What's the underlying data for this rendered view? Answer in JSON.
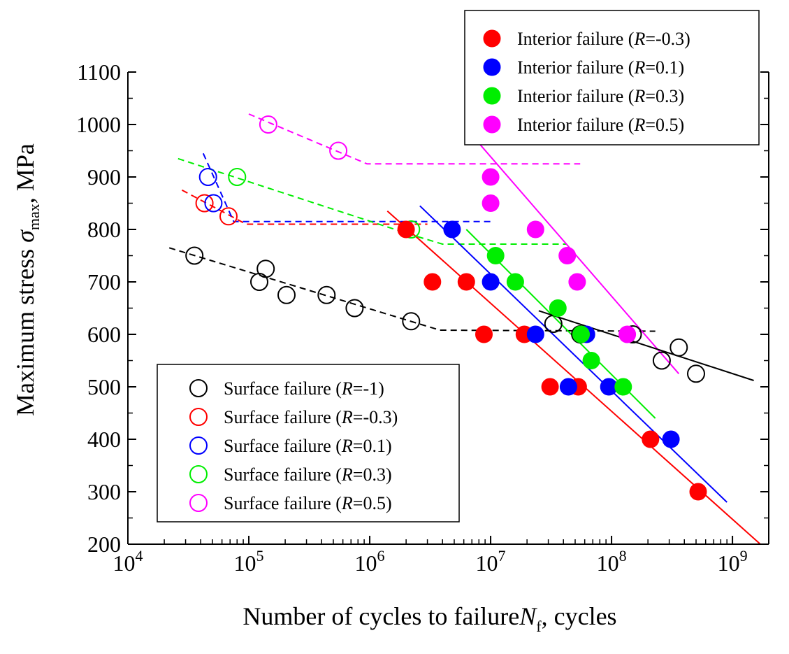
{
  "chart_data": {
    "type": "scatter",
    "x_scale": "log",
    "xlim_exp": [
      4,
      9.3
    ],
    "ylim": [
      200,
      1100
    ],
    "yticks": [
      200,
      300,
      400,
      500,
      600,
      700,
      800,
      900,
      1000,
      1100
    ],
    "xtick_exps": [
      4,
      5,
      6,
      7,
      8,
      9
    ],
    "xtick_base": "10",
    "xlabel_main": "Number of cycles to failure",
    "xlabel_symbol": "N",
    "xlabel_sub": "f",
    "xlabel_tail": ", cycles",
    "ylabel_main": "Maximum stress ",
    "ylabel_symbol": "σ",
    "ylabel_sub": "max",
    "ylabel_tail": ", MPa",
    "series": [
      {
        "name": "Surface failure (R=-1)",
        "label_pre": "Surface failure (",
        "label_R": "R",
        "label_post": "=-1)",
        "color": "#000000",
        "filled": false,
        "points": [
          [
            35500.0,
            750
          ],
          [
            122000.0,
            700
          ],
          [
            138000.0,
            725
          ],
          [
            205000.0,
            675
          ],
          [
            440000.0,
            675
          ],
          [
            750000.0,
            650
          ],
          [
            2200000.0,
            625
          ],
          [
            33000000.0,
            620
          ],
          [
            55000000.0,
            600
          ],
          [
            150000000.0,
            600
          ],
          [
            260000000.0,
            550
          ],
          [
            360000000.0,
            575
          ],
          [
            500000000.0,
            525
          ]
        ]
      },
      {
        "name": "Surface failure (R=-0.3)",
        "label_pre": "Surface failure (",
        "label_R": "R",
        "label_post": "=-0.3)",
        "color": "#ff0000",
        "filled": false,
        "points": [
          [
            43000.0,
            850
          ],
          [
            68000.0,
            825
          ]
        ]
      },
      {
        "name": "Surface failure (R=0.1)",
        "label_pre": "Surface failure (",
        "label_R": "R",
        "label_post": "=0.1)",
        "color": "#0000ff",
        "filled": false,
        "points": [
          [
            46000.0,
            900
          ],
          [
            51000.0,
            850
          ]
        ]
      },
      {
        "name": "Surface failure (R=0.3)",
        "label_pre": "Surface failure (",
        "label_R": "R",
        "label_post": "=0.3)",
        "color": "#00ee00",
        "filled": false,
        "points": [
          [
            80000.0,
            900
          ],
          [
            2200000.0,
            800
          ]
        ]
      },
      {
        "name": "Surface failure (R=0.5)",
        "label_pre": "Surface failure (",
        "label_R": "R",
        "label_post": "=0.5)",
        "color": "#ff00ff",
        "filled": false,
        "points": [
          [
            145000.0,
            1000
          ],
          [
            550000.0,
            950
          ]
        ]
      },
      {
        "name": "Interior failure (R=-0.3)",
        "label_pre": "Interior failure (",
        "label_R": "R",
        "label_post": "=-0.3)",
        "color": "#ff0000",
        "filled": true,
        "points": [
          [
            2000000.0,
            800
          ],
          [
            3300000.0,
            700
          ],
          [
            6300000.0,
            700
          ],
          [
            8800000.0,
            600
          ],
          [
            19000000.0,
            600
          ],
          [
            31000000.0,
            500
          ],
          [
            53000000.0,
            500
          ],
          [
            210000000.0,
            400
          ],
          [
            520000000.0,
            300
          ]
        ]
      },
      {
        "name": "Interior failure (R=0.1)",
        "label_pre": "Interior failure (",
        "label_R": "R",
        "label_post": "=0.1)",
        "color": "#0000ff",
        "filled": true,
        "points": [
          [
            4800000.0,
            800
          ],
          [
            10000000.0,
            700
          ],
          [
            23500000.0,
            600
          ],
          [
            44000000.0,
            500
          ],
          [
            62000000.0,
            600
          ],
          [
            95000000.0,
            500
          ],
          [
            310000000.0,
            400
          ]
        ]
      },
      {
        "name": "Interior failure (R=0.3)",
        "label_pre": "Interior failure (",
        "label_R": "R",
        "label_post": "=0.3)",
        "color": "#00ee00",
        "filled": true,
        "points": [
          [
            11000000.0,
            750
          ],
          [
            16000000.0,
            700
          ],
          [
            36000000.0,
            650
          ],
          [
            56000000.0,
            600
          ],
          [
            68000000.0,
            550
          ],
          [
            125000000.0,
            500
          ]
        ]
      },
      {
        "name": "Interior failure (R=0.5)",
        "label_pre": "Interior failure (",
        "label_R": "R",
        "label_post": "=0.5)",
        "color": "#ff00ff",
        "filled": true,
        "points": [
          [
            10000000.0,
            900
          ],
          [
            10000000.0,
            850
          ],
          [
            23500000.0,
            800
          ],
          [
            43000000.0,
            750
          ],
          [
            52000000.0,
            700
          ],
          [
            135000000.0,
            600
          ]
        ]
      }
    ],
    "solid_lines": [
      {
        "color": "#ff0000",
        "points": [
          [
            1400000.0,
            835
          ],
          [
            1700000000.0,
            200
          ]
        ]
      },
      {
        "color": "#0000ff",
        "points": [
          [
            2600000.0,
            845
          ],
          [
            900000000.0,
            280
          ]
        ]
      },
      {
        "color": "#00ee00",
        "points": [
          [
            6300000.0,
            800
          ],
          [
            230000000.0,
            440
          ]
        ]
      },
      {
        "color": "#ff00ff",
        "points": [
          [
            7300000.0,
            975
          ],
          [
            360000000.0,
            525
          ]
        ]
      },
      {
        "color": "#000000",
        "points": [
          [
            25000000.0,
            645
          ],
          [
            1500000000.0,
            512
          ]
        ]
      }
    ],
    "dashed_lines": [
      {
        "color": "#000000",
        "points": [
          [
            22000.0,
            765
          ],
          [
            3800000.0,
            608
          ],
          [
            230000000.0,
            606
          ]
        ]
      },
      {
        "color": "#ff0000",
        "points": [
          [
            28000.0,
            875
          ],
          [
            95000.0,
            810
          ],
          [
            3000000.0,
            810
          ]
        ]
      },
      {
        "color": "#0000ff",
        "points": [
          [
            42000.0,
            945
          ],
          [
            75000.0,
            815
          ],
          [
            10000000.0,
            815
          ]
        ]
      },
      {
        "color": "#00ee00",
        "points": [
          [
            26000.0,
            935
          ],
          [
            2200000.0,
            790
          ],
          [
            4000000.0,
            772
          ],
          [
            42000000.0,
            772
          ]
        ]
      },
      {
        "color": "#ff00ff",
        "points": [
          [
            100000.0,
            1020
          ],
          [
            950000.0,
            925
          ],
          [
            55000000.0,
            925
          ]
        ]
      }
    ],
    "legend_interior_position": "top-right",
    "legend_surface_position": "bottom-left"
  }
}
